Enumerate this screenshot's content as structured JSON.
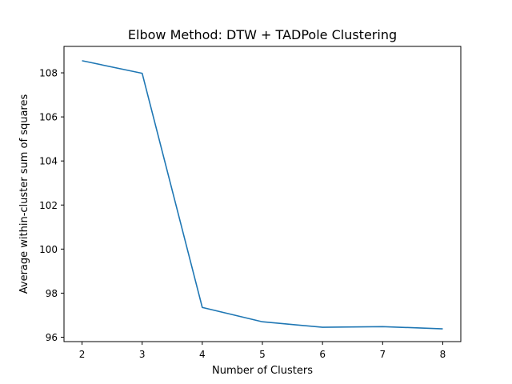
{
  "chart_data": {
    "type": "line",
    "title": "Elbow Method: DTW + TADPole Clustering",
    "xlabel": "Number of Clusters",
    "ylabel": "Average within-cluster sum of squares",
    "x": [
      2,
      3,
      4,
      5,
      6,
      7,
      8
    ],
    "series": [
      {
        "values": [
          108.55,
          107.98,
          97.35,
          96.7,
          96.45,
          96.48,
          96.38
        ],
        "color": "#1f77b4"
      }
    ],
    "xlim": [
      1.7,
      8.3
    ],
    "ylim": [
      95.8,
      109.2
    ],
    "xticks": [
      2,
      3,
      4,
      5,
      6,
      7,
      8
    ],
    "yticks": [
      96,
      98,
      100,
      102,
      104,
      106,
      108
    ],
    "grid": false,
    "legend": "none"
  }
}
